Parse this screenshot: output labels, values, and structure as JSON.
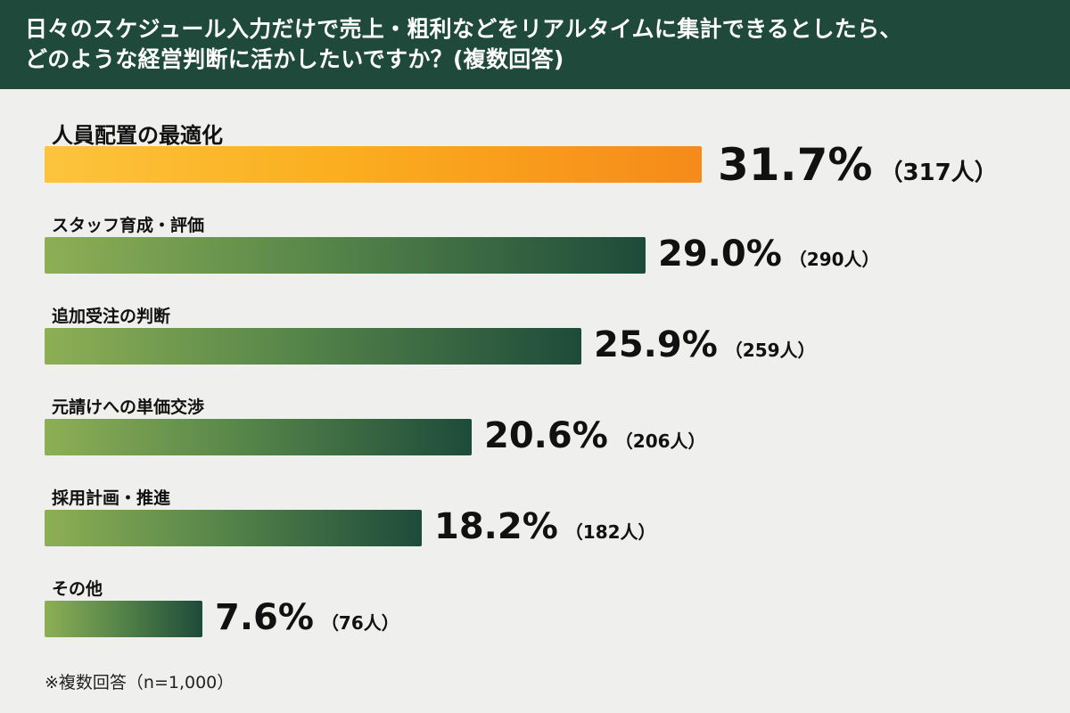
{
  "header": {
    "line1": "日々のスケジュール入力だけで売上・粗利などをリアルタイムに集計できるとしたら、",
    "line2": "どのような経営判断に活かしたいですか？(複数回答)"
  },
  "chart_data": {
    "type": "bar",
    "orientation": "horizontal",
    "title": "日々のスケジュール入力だけで売上・粗利などをリアルタイムに集計できるとしたら、どのような経営判断に活かしたいですか？(複数回答)",
    "categories": [
      "人員配置の最適化",
      "スタッフ育成・評価",
      "追加受注の判断",
      "元請けへの単価交渉",
      "採用計画・推進",
      "その他"
    ],
    "values": [
      31.7,
      29.0,
      25.9,
      20.6,
      18.2,
      7.6
    ],
    "value_labels": [
      "31.7%",
      "29.0%",
      "25.9%",
      "20.6%",
      "18.2%",
      "7.6%"
    ],
    "count_labels": [
      "（317人）",
      "（290人）",
      "（259人）",
      "（206人）",
      "（182人）",
      "（76人）"
    ],
    "unit": "%",
    "highlight_index": 0,
    "colors": {
      "highlight_start": "#fcc43d",
      "highlight_end": "#f68a1a",
      "bar_start": "#8daf55",
      "bar_end": "#1d4b3a",
      "header_bg": "#1f4a3b"
    },
    "grid": false,
    "legend": "none"
  },
  "footnote": "※複数回答（n=1,000）"
}
